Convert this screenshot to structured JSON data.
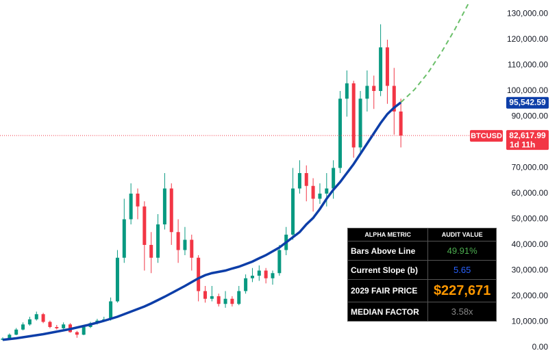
{
  "chart_data": {
    "type": "candlestick",
    "symbol": "BTCUSD",
    "countdown": "1d 11h",
    "up_color": "#089981",
    "down_color": "#f23645",
    "ylim": [
      0,
      135000
    ],
    "yticks": [
      {
        "value": 0,
        "label": "0.00"
      },
      {
        "value": 10000,
        "label": "10,000.00"
      },
      {
        "value": 20000,
        "label": "20,000.00"
      },
      {
        "value": 30000,
        "label": "30,000.00"
      },
      {
        "value": 40000,
        "label": "40,000.00"
      },
      {
        "value": 50000,
        "label": "50,000.00"
      },
      {
        "value": 60000,
        "label": "60,000.00"
      },
      {
        "value": 70000,
        "label": "70,000.00"
      },
      {
        "value": 80000,
        "label": "80,000.00"
      },
      {
        "value": 90000,
        "label": "90,000.00"
      },
      {
        "value": 100000,
        "label": "100,000.00"
      },
      {
        "value": 110000,
        "label": "110,000.00"
      },
      {
        "value": 120000,
        "label": "120,000.00"
      },
      {
        "value": 130000,
        "label": "130,000.00"
      }
    ],
    "open": [
      3000,
      3500,
      5000,
      7000,
      9000,
      11000,
      13000,
      10000,
      8000,
      7500,
      9000,
      6000,
      5000,
      8000,
      9500,
      10500,
      11000,
      18000,
      35000,
      50000,
      60000,
      55000,
      40000,
      35000,
      48000,
      62000,
      45000,
      38000,
      42000,
      35000,
      22000,
      19000,
      20000,
      17000,
      19000,
      17000,
      22000,
      27000,
      28000,
      30000,
      27000,
      29000,
      38000,
      44000,
      62000,
      68000,
      63000,
      58000,
      60000,
      62000,
      70000,
      97000,
      103000,
      78000,
      97000,
      102000,
      100000,
      117000,
      102000,
      92000
    ],
    "high": [
      4000,
      5500,
      7600,
      9800,
      12000,
      14000,
      13500,
      10500,
      8800,
      9800,
      9500,
      6500,
      8500,
      10000,
      11200,
      12000,
      19500,
      38000,
      58000,
      64000,
      62000,
      57000,
      45000,
      52000,
      68000,
      64000,
      50000,
      47000,
      44000,
      36000,
      24000,
      24000,
      21000,
      22000,
      20000,
      24000,
      28500,
      31000,
      32000,
      31000,
      30000,
      40000,
      47000,
      70000,
      73000,
      71000,
      66000,
      64000,
      68000,
      73000,
      100000,
      108000,
      104000,
      100000,
      108000,
      106000,
      126000,
      120000,
      109000,
      97000
    ],
    "low": [
      2800,
      3300,
      4800,
      6700,
      8500,
      10500,
      9500,
      7500,
      7000,
      7200,
      5800,
      3800,
      4800,
      7600,
      9000,
      10000,
      10500,
      17500,
      33000,
      48000,
      50000,
      30000,
      29000,
      33000,
      46000,
      40000,
      33000,
      36000,
      30000,
      18000,
      17500,
      18000,
      16000,
      15500,
      16000,
      16500,
      21000,
      25500,
      26000,
      25000,
      24500,
      28000,
      36000,
      42000,
      60000,
      57000,
      53000,
      56000,
      55000,
      58000,
      68000,
      90000,
      74000,
      76000,
      92000,
      93000,
      98000,
      95000,
      83000,
      78000
    ],
    "close": [
      3500,
      5000,
      7000,
      9000,
      11000,
      13000,
      10000,
      8000,
      7500,
      9000,
      6000,
      5000,
      8000,
      9500,
      10500,
      11000,
      18000,
      35000,
      50000,
      60000,
      55000,
      40000,
      35000,
      48000,
      62000,
      45000,
      38000,
      42000,
      35000,
      22000,
      19000,
      20000,
      17000,
      19000,
      17000,
      22000,
      27000,
      28000,
      30000,
      27000,
      29000,
      38000,
      44000,
      62000,
      68000,
      63000,
      58000,
      60000,
      62000,
      70000,
      97000,
      103000,
      78000,
      97000,
      102000,
      100000,
      117000,
      102000,
      92000,
      82617.99
    ],
    "lines": [
      {
        "color": "#0d3ea8",
        "dashed": false,
        "x": [
          0,
          1,
          2,
          3,
          4,
          5,
          6,
          7,
          8,
          9,
          10,
          11,
          12,
          13,
          14,
          15,
          16,
          17,
          18,
          19,
          20,
          21,
          22,
          23,
          24,
          25,
          26,
          27,
          28,
          29,
          30,
          31,
          32,
          33,
          34,
          35,
          36,
          37,
          38,
          39,
          40,
          41,
          42,
          43,
          44,
          45,
          46,
          47,
          48,
          49,
          50,
          51,
          52,
          53,
          54,
          55,
          56,
          57,
          58,
          59
        ],
        "values": [
          3000,
          3300,
          3600,
          4000,
          4400,
          4800,
          5200,
          5700,
          6200,
          6700,
          7200,
          7800,
          8400,
          9000,
          9700,
          10400,
          11200,
          12000,
          13000,
          14000,
          15000,
          16000,
          17200,
          18500,
          19800,
          21200,
          22600,
          24000,
          25500,
          27000,
          28200,
          29000,
          29500,
          30000,
          30800,
          31500,
          32500,
          33500,
          34800,
          36000,
          37500,
          39000,
          41000,
          43000,
          45000,
          48000,
          50500,
          54000,
          58000,
          61500,
          64500,
          68000,
          71500,
          75500,
          79500,
          83500,
          87500,
          91000,
          93500,
          95542.59
        ]
      },
      {
        "color": "#6abf69",
        "dashed": true,
        "x": [
          59,
          61,
          63,
          65,
          67,
          69
        ],
        "values": [
          95542.59,
          100500,
          107000,
          115000,
          124000,
          134000
        ]
      }
    ],
    "fair_value_tag": {
      "value": 95542.59,
      "label": "95,542.59"
    },
    "last_price_tag": {
      "value": 82617.99,
      "label": "82,617.99"
    }
  },
  "table": {
    "headers": [
      "ALPHA METRIC",
      "AUDIT VALUE"
    ],
    "rows": [
      [
        "Bars Above Line",
        "49.91%"
      ],
      [
        "Current Slope (b)",
        "5.65"
      ],
      [
        "2029 FAIR PRICE",
        "$227,671"
      ],
      [
        "MEDIAN FACTOR",
        "3.58x"
      ]
    ]
  }
}
